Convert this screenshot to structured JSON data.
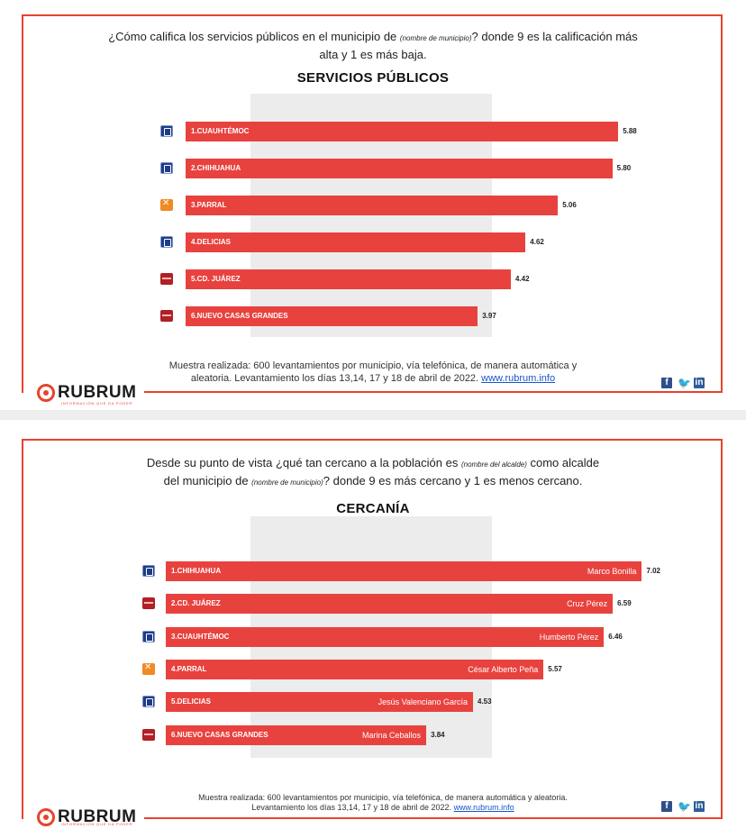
{
  "colors": {
    "accent": "#e8432e",
    "bar": "#e8423e",
    "pan": "#1e3c8a",
    "mc": "#f08a24",
    "morena": "#b02025"
  },
  "panel1": {
    "question_a": "¿Cómo califica los servicios públicos en el municipio de ",
    "question_small": "(nombre de municipio)",
    "question_b": "? donde 9 es la calificación más alta y 1 es más baja.",
    "title": "SERVICIOS PÚBLICOS",
    "note_line1": "Muestra realizada: 600 levantamientos por municipio, vía telefónica, de manera automática y",
    "note_line2": "aleatoria.  Levantamiento los días  13,14, 17 y 18 de abril  de 2022. ",
    "note_link": "www.rubrum.info",
    "logo": "RUBRUM",
    "logo_tag": "INFORMACIÓN QUE DA PODER"
  },
  "panel2": {
    "question_a": "Desde su punto de vista ¿qué tan cercano a la población es ",
    "question_small_a": "(nombre del alcalde)",
    "question_b": " como alcalde",
    "question_c": "del municipio de ",
    "question_small_b": "(nombre de municipio)",
    "question_d": "? donde 9 es más cercano y 1 es menos cercano.",
    "title": "CERCANÍA",
    "note_line1": "Muestra realizada: 600 levantamientos por municipio, vía telefónica, de manera automática y aleatoria.",
    "note_line2": "Levantamiento los días 13,14, 17 y 18 de abril de 2022. ",
    "note_link": "www.rubrum.info",
    "logo": "RUBRUM",
    "logo_tag": "INFORMACIÓN QUE DA PODER"
  },
  "chart_data": [
    {
      "type": "bar",
      "orientation": "horizontal",
      "title": "SERVICIOS PÚBLICOS",
      "categories": [
        "1.CUAUHTÉMOC",
        "2.CHIHUAHUA",
        "3.PARRAL",
        "4.DELICIAS",
        "5.CD. JUÁREZ",
        "6.NUEVO CASAS GRANDES"
      ],
      "values": [
        5.88,
        5.8,
        5.06,
        4.62,
        4.42,
        3.97
      ],
      "value_labels": [
        "5.88",
        "5.80",
        "5.06",
        "4.62",
        "4.42",
        "3.97"
      ],
      "party_icons": [
        "pan",
        "pan",
        "mc",
        "pan",
        "morena",
        "morena"
      ],
      "xlim": [
        0,
        6
      ]
    },
    {
      "type": "bar",
      "orientation": "horizontal",
      "title": "CERCANÍA",
      "categories": [
        "1.CHIHUAHUA",
        "2.CD. JUÁREZ",
        "3.CUAUHTÉMOC",
        "4.PARRAL",
        "5.DELICIAS",
        "6.NUEVO CASAS GRANDES"
      ],
      "names": [
        "Marco Bonilla",
        "Cruz Pérez",
        "Humberto Pérez",
        "César Alberto Peña",
        "Jesús Valenciano García",
        "Marina Ceballos"
      ],
      "values": [
        7.02,
        6.59,
        6.46,
        5.57,
        4.53,
        3.84
      ],
      "value_labels": [
        "7.02",
        "6.59",
        "6.46",
        "5.57",
        "4.53",
        "3.84"
      ],
      "party_icons": [
        "pan",
        "morena",
        "pan",
        "mc",
        "pan",
        "morena"
      ],
      "xlim": [
        0,
        7.2
      ]
    }
  ]
}
